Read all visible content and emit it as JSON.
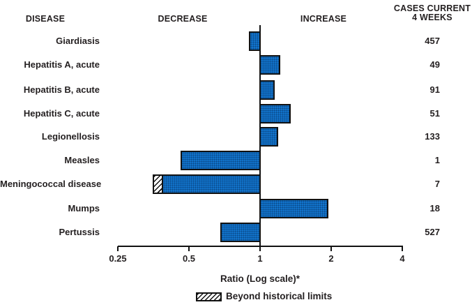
{
  "header": {
    "disease": "DISEASE",
    "decrease": "DECREASE",
    "increase": "INCREASE",
    "cases_line1": "CASES CURRENT",
    "cases_line2": "4 WEEKS"
  },
  "chart_data": {
    "type": "bar",
    "orientation": "horizontal",
    "scale": "log",
    "baseline_ratio": 1,
    "title": "",
    "xlabel": "Ratio (Log scale)*",
    "axis": {
      "ticks": [
        0.25,
        0.5,
        1,
        2,
        4
      ],
      "tick_labels": [
        "0.25",
        "0.5",
        "1",
        "2",
        "4"
      ],
      "min": 0.25,
      "max": 4
    },
    "legend": {
      "hatch_label": "Beyond historical limits",
      "position": "bottom"
    },
    "columns": [
      "DISEASE",
      "RATIO",
      "CASES CURRENT 4 WEEKS"
    ],
    "rows": [
      {
        "disease": "Giardiasis",
        "ratio": 0.9,
        "cases": 457,
        "beyond_limits": false
      },
      {
        "disease": "Hepatitis A, acute",
        "ratio": 1.22,
        "cases": 49,
        "beyond_limits": false
      },
      {
        "disease": "Hepatitis B, acute",
        "ratio": 1.15,
        "cases": 91,
        "beyond_limits": false
      },
      {
        "disease": "Hepatitis C, acute",
        "ratio": 1.35,
        "cases": 51,
        "beyond_limits": false
      },
      {
        "disease": "Legionellosis",
        "ratio": 1.19,
        "cases": 133,
        "beyond_limits": false
      },
      {
        "disease": "Measles",
        "ratio": 0.46,
        "cases": 1,
        "beyond_limits": false
      },
      {
        "disease": "Meningococcal disease",
        "ratio": 0.35,
        "cases": 7,
        "beyond_limits": true,
        "hatch_end_ratio": 0.39
      },
      {
        "disease": "Mumps",
        "ratio": 1.95,
        "cases": 18,
        "beyond_limits": false
      },
      {
        "disease": "Pertussis",
        "ratio": 0.68,
        "cases": 527,
        "beyond_limits": false
      }
    ],
    "colors": {
      "bar_fill": "#1173cb",
      "bar_dot": "#04244d",
      "bar_border": "#111111",
      "text": "#231f20",
      "background": "#ffffff"
    }
  }
}
